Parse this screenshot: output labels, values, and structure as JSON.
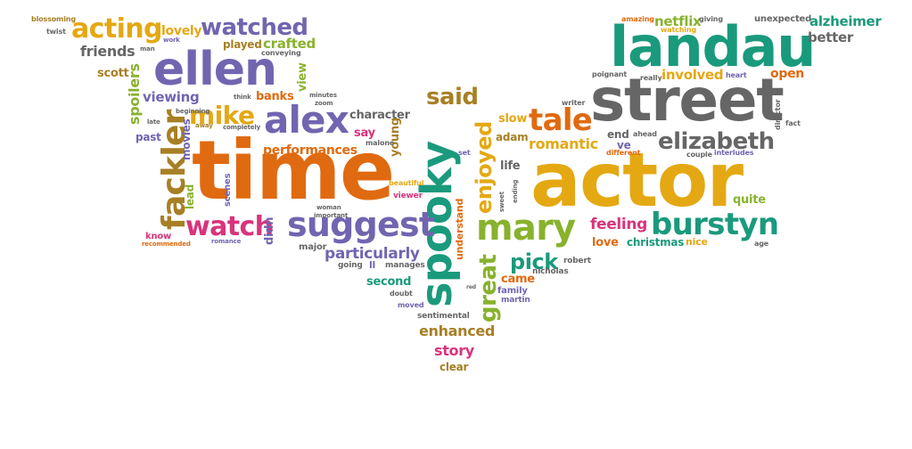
{
  "colors": {
    "orange": "#e06a10",
    "gold": "#e4a813",
    "purple": "#7165b0",
    "teal": "#1a9a7c",
    "gray": "#666666",
    "green": "#88b22d",
    "pink": "#d8347c",
    "brown": "#a77f24"
  },
  "words": [
    {
      "id": "time",
      "text": "time"
    },
    {
      "id": "actor",
      "text": "actor"
    },
    {
      "id": "street",
      "text": "street"
    },
    {
      "id": "landau",
      "text": "landau"
    },
    {
      "id": "spooky",
      "text": "spooky"
    },
    {
      "id": "ellen",
      "text": "ellen"
    },
    {
      "id": "alex",
      "text": "alex"
    },
    {
      "id": "suggest",
      "text": "suggest"
    },
    {
      "id": "mary",
      "text": "mary"
    },
    {
      "id": "fackler",
      "text": "fackler"
    },
    {
      "id": "burstyn",
      "text": "burstyn"
    },
    {
      "id": "elizabeth",
      "text": "elizabeth"
    },
    {
      "id": "watch",
      "text": "watch"
    },
    {
      "id": "tale",
      "text": "tale"
    },
    {
      "id": "acting",
      "text": "acting"
    },
    {
      "id": "watched",
      "text": "watched"
    },
    {
      "id": "mike",
      "text": "mike"
    },
    {
      "id": "said",
      "text": "said"
    },
    {
      "id": "enjoyed",
      "text": "enjoyed"
    },
    {
      "id": "great",
      "text": "great"
    },
    {
      "id": "pick",
      "text": "pick"
    },
    {
      "id": "particularly",
      "text": "particularly"
    },
    {
      "id": "feeling",
      "text": "feeling"
    },
    {
      "id": "romantic",
      "text": "romantic"
    },
    {
      "id": "performances",
      "text": "performances"
    },
    {
      "id": "enhanced",
      "text": "enhanced"
    },
    {
      "id": "story",
      "text": "story"
    },
    {
      "id": "friends",
      "text": "friends"
    },
    {
      "id": "spoilers",
      "text": "spoilers"
    },
    {
      "id": "viewing",
      "text": "viewing"
    },
    {
      "id": "crafted",
      "text": "crafted"
    },
    {
      "id": "played",
      "text": "played"
    },
    {
      "id": "lovely",
      "text": "lovely"
    },
    {
      "id": "netflix",
      "text": "netflix"
    },
    {
      "id": "alzheimer",
      "text": "alzheimer"
    },
    {
      "id": "involved",
      "text": "involved"
    },
    {
      "id": "better",
      "text": "better"
    },
    {
      "id": "open",
      "text": "open"
    },
    {
      "id": "character",
      "text": "character"
    },
    {
      "id": "banks",
      "text": "banks"
    },
    {
      "id": "view",
      "text": "view"
    },
    {
      "id": "scott",
      "text": "scott"
    },
    {
      "id": "past",
      "text": "past"
    },
    {
      "id": "movies",
      "text": "movies"
    },
    {
      "id": "lead",
      "text": "lead"
    },
    {
      "id": "say",
      "text": "say"
    },
    {
      "id": "young",
      "text": "young"
    },
    {
      "id": "slow",
      "text": "slow"
    },
    {
      "id": "adam",
      "text": "adam"
    },
    {
      "id": "end",
      "text": "end"
    },
    {
      "id": "ve",
      "text": "ve"
    },
    {
      "id": "life",
      "text": "life"
    },
    {
      "id": "quite",
      "text": "quite"
    },
    {
      "id": "love",
      "text": "love"
    },
    {
      "id": "christmas",
      "text": "christmas"
    },
    {
      "id": "nice",
      "text": "nice"
    },
    {
      "id": "didn",
      "text": "didn"
    },
    {
      "id": "second",
      "text": "second"
    },
    {
      "id": "came",
      "text": "came"
    },
    {
      "id": "family",
      "text": "family"
    },
    {
      "id": "understand",
      "text": "understand"
    },
    {
      "id": "major",
      "text": "major"
    },
    {
      "id": "clear",
      "text": "clear"
    },
    {
      "id": "know",
      "text": "know"
    },
    {
      "id": "scenes",
      "text": "scenes"
    },
    {
      "id": "going",
      "text": "going"
    },
    {
      "id": "ll",
      "text": "ll"
    },
    {
      "id": "manages",
      "text": "manages"
    },
    {
      "id": "robert",
      "text": "robert"
    },
    {
      "id": "nicholas",
      "text": "nicholas"
    },
    {
      "id": "martin",
      "text": "martin"
    },
    {
      "id": "sentimental",
      "text": "sentimental"
    },
    {
      "id": "moved",
      "text": "moved"
    },
    {
      "id": "doubt",
      "text": "doubt"
    },
    {
      "id": "viewer",
      "text": "viewer"
    },
    {
      "id": "beautiful",
      "text": "beautiful"
    },
    {
      "id": "set",
      "text": "set"
    },
    {
      "id": "malone",
      "text": "malone"
    },
    {
      "id": "blossoming",
      "text": "blossoming"
    },
    {
      "id": "twist",
      "text": "twist"
    },
    {
      "id": "man",
      "text": "man"
    },
    {
      "id": "work",
      "text": "work"
    },
    {
      "id": "conveying",
      "text": "conveying"
    },
    {
      "id": "amazing",
      "text": "amazing"
    },
    {
      "id": "giving",
      "text": "giving"
    },
    {
      "id": "unexpected",
      "text": "unexpected"
    },
    {
      "id": "watching",
      "text": "watching"
    },
    {
      "id": "poignant",
      "text": "poignant"
    },
    {
      "id": "really",
      "text": "really"
    },
    {
      "id": "heart",
      "text": "heart"
    },
    {
      "id": "writer",
      "text": "writer"
    },
    {
      "id": "director",
      "text": "director"
    },
    {
      "id": "fact",
      "text": "fact"
    },
    {
      "id": "ahead",
      "text": "ahead"
    },
    {
      "id": "different",
      "text": "different"
    },
    {
      "id": "couple",
      "text": "couple"
    },
    {
      "id": "interludes",
      "text": "interludes"
    },
    {
      "id": "age",
      "text": "age"
    },
    {
      "id": "think",
      "text": "think"
    },
    {
      "id": "minutes",
      "text": "minutes"
    },
    {
      "id": "zoom",
      "text": "zoom"
    },
    {
      "id": "late",
      "text": "late"
    },
    {
      "id": "beginning",
      "text": "beginning"
    },
    {
      "id": "away",
      "text": "away"
    },
    {
      "id": "completely",
      "text": "completely"
    },
    {
      "id": "woman",
      "text": "woman"
    },
    {
      "id": "important",
      "text": "important"
    },
    {
      "id": "recommended",
      "text": "recommended"
    },
    {
      "id": "romance",
      "text": "romance"
    },
    {
      "id": "ending",
      "text": "ending"
    },
    {
      "id": "sweet",
      "text": "sweet"
    },
    {
      "id": "red",
      "text": "red"
    }
  ]
}
